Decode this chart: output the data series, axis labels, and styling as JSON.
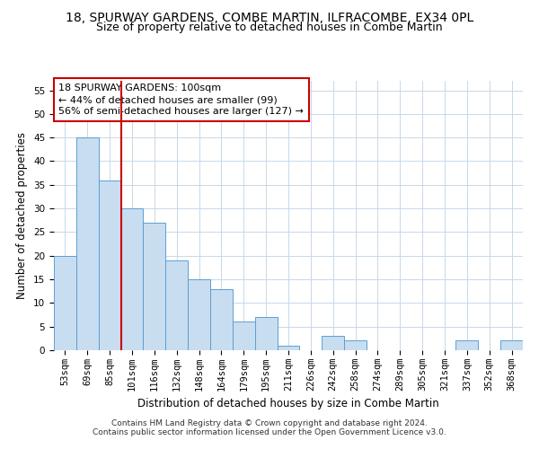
{
  "title": "18, SPURWAY GARDENS, COMBE MARTIN, ILFRACOMBE, EX34 0PL",
  "subtitle": "Size of property relative to detached houses in Combe Martin",
  "xlabel": "Distribution of detached houses by size in Combe Martin",
  "ylabel": "Number of detached properties",
  "categories": [
    "53sqm",
    "69sqm",
    "85sqm",
    "101sqm",
    "116sqm",
    "132sqm",
    "148sqm",
    "164sqm",
    "179sqm",
    "195sqm",
    "211sqm",
    "226sqm",
    "242sqm",
    "258sqm",
    "274sqm",
    "289sqm",
    "305sqm",
    "321sqm",
    "337sqm",
    "352sqm",
    "368sqm"
  ],
  "values": [
    20,
    45,
    36,
    30,
    27,
    19,
    15,
    13,
    6,
    7,
    1,
    0,
    3,
    2,
    0,
    0,
    0,
    0,
    2,
    0,
    2
  ],
  "bar_color": "#c9ddf0",
  "bar_edge_color": "#5a9fd4",
  "reference_line_color": "#cc0000",
  "annotation_box_text": "18 SPURWAY GARDENS: 100sqm\n← 44% of detached houses are smaller (99)\n56% of semi-detached houses are larger (127) →",
  "annotation_box_color": "#cc0000",
  "annotation_box_bg": "#ffffff",
  "ylim": [
    0,
    57
  ],
  "yticks": [
    0,
    5,
    10,
    15,
    20,
    25,
    30,
    35,
    40,
    45,
    50,
    55
  ],
  "footer1": "Contains HM Land Registry data © Crown copyright and database right 2024.",
  "footer2": "Contains public sector information licensed under the Open Government Licence v3.0.",
  "bg_color": "#ffffff",
  "grid_color": "#c8d8e8",
  "title_fontsize": 10,
  "subtitle_fontsize": 9,
  "xlabel_fontsize": 8.5,
  "ylabel_fontsize": 8.5,
  "tick_fontsize": 7.5,
  "annotation_fontsize": 8,
  "footer_fontsize": 6.5
}
